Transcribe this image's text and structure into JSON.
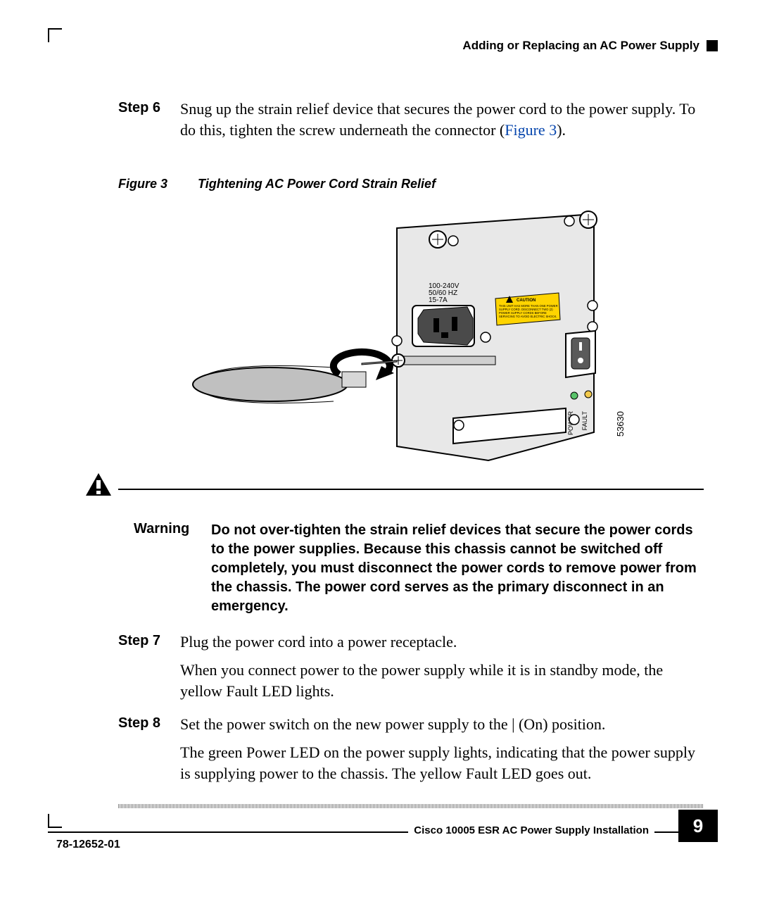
{
  "header": {
    "section_title": "Adding or Replacing an AC Power Supply"
  },
  "steps_top": [
    {
      "label": "Step 6",
      "paragraphs": [
        "Snug up the strain relief device that secures the power cord to the power supply. To do this, tighten the screw underneath the connector (<a class=\"figref\">Figure 3</a>)."
      ]
    }
  ],
  "figure": {
    "label": "Figure 3",
    "caption": "Tightening AC Power Cord Strain Relief",
    "id_label": "53630",
    "panel_text": {
      "volts": "100-240V",
      "hz": "50/60 HZ",
      "amps": "15-7A"
    },
    "caution_label_text": "CAUTION",
    "caution_label_lines": "THIS UNIT HAS MORE THAN ONE POWER SUPPLY CORD. DISCONNECT TWO (2) POWER SUPPLY CORDS BEFORE SERVICING TO AVOID ELECTRIC SHOCK.",
    "led_labels": {
      "power": "POWER",
      "fault": "FAULT"
    },
    "colors": {
      "panel_fill": "#e8e8e8",
      "panel_edge": "#000000",
      "caution_fill": "#ffd400",
      "caution_text": "#000000",
      "screw_fill": "#ffffff",
      "screw_edge": "#000000",
      "switch_fill": "#5a5a5a",
      "driver_handle": "#c0c0c0",
      "driver_shaft": "#bfbfbf",
      "led_power": "#59c36a",
      "led_fault": "#f2c94c"
    }
  },
  "warning": {
    "label": "Warning",
    "text": "Do not over-tighten the strain relief devices that secure the power cords to the power supplies. Because this chassis cannot be switched off completely, you must disconnect the power cords to remove power from the chassis. The power cord serves as the primary disconnect in an emergency."
  },
  "steps_bottom": [
    {
      "label": "Step 7",
      "paragraphs": [
        "Plug the power cord into a power receptacle.",
        "When you connect power to the power supply while it is in standby mode, the yellow Fault LED lights."
      ]
    },
    {
      "label": "Step 8",
      "paragraphs": [
        "Set the power switch on the new power supply to the | (On) position.",
        "The green Power LED on the power supply lights, indicating that the power supply is supplying power to the chassis. The yellow Fault LED goes out."
      ]
    }
  ],
  "footer": {
    "manual_title": "Cisco 10005 ESR AC Power Supply Installation",
    "doc_number": "78-12652-01",
    "page_number": "9"
  }
}
